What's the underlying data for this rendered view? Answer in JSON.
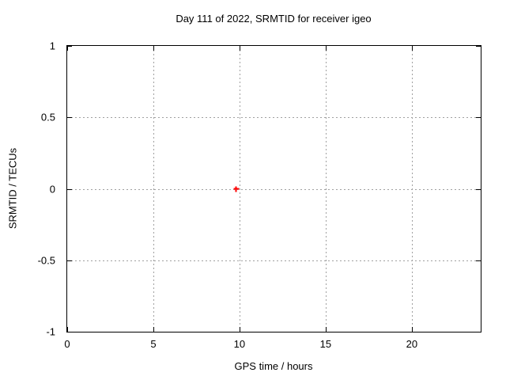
{
  "chart_data": {
    "type": "scatter",
    "title": "Day 111 of 2022, SRMTID for receiver igeo",
    "xlabel": "GPS time / hours",
    "ylabel": "SRMTID / TECUs",
    "xlim": [
      0,
      24
    ],
    "ylim": [
      -1,
      1
    ],
    "xticks": [
      0,
      5,
      10,
      15,
      20
    ],
    "xtick_labels": [
      "0",
      "5",
      "10",
      "15",
      "20"
    ],
    "yticks": [
      1,
      0.5,
      0,
      -0.5,
      -1
    ],
    "ytick_labels": [
      "1",
      "0.5",
      "0",
      "-0.5",
      "-1"
    ],
    "grid": true,
    "legend": "none",
    "colors": {
      "background": "#ffffff",
      "border": "#000000",
      "grid": "#a0a0a0",
      "marker": "#ff0000"
    },
    "series": [
      {
        "name": "SRMTID",
        "marker": "plus",
        "color": "#ff0000",
        "points": [
          {
            "x": 9.8,
            "y": 0.0
          }
        ]
      }
    ]
  }
}
